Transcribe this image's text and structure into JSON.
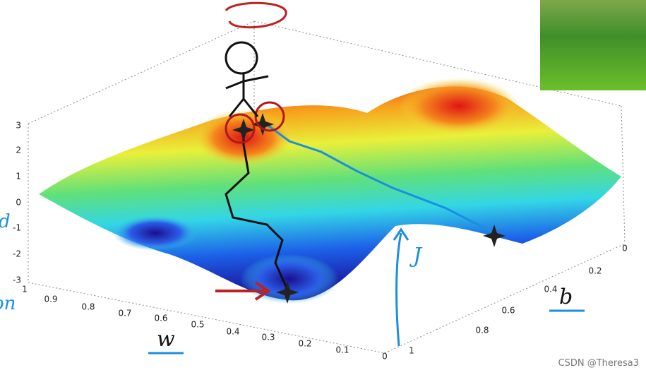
{
  "axes": {
    "z_ticks": [
      3,
      2,
      1,
      0,
      -1,
      -2,
      -3
    ],
    "w_ticks": [
      1,
      0.9,
      0.8,
      0.7,
      0.6,
      0.5,
      0.4,
      0.3,
      0.2,
      0.1,
      0
    ],
    "b_ticks": [
      0,
      0.2,
      0.4,
      0.6,
      0.8,
      1
    ]
  },
  "labels": {
    "w": "w",
    "b": "b",
    "J": "J",
    "left_top": "d",
    "left_bottom": "on"
  },
  "watermark": "CSDN @Theresa3"
}
